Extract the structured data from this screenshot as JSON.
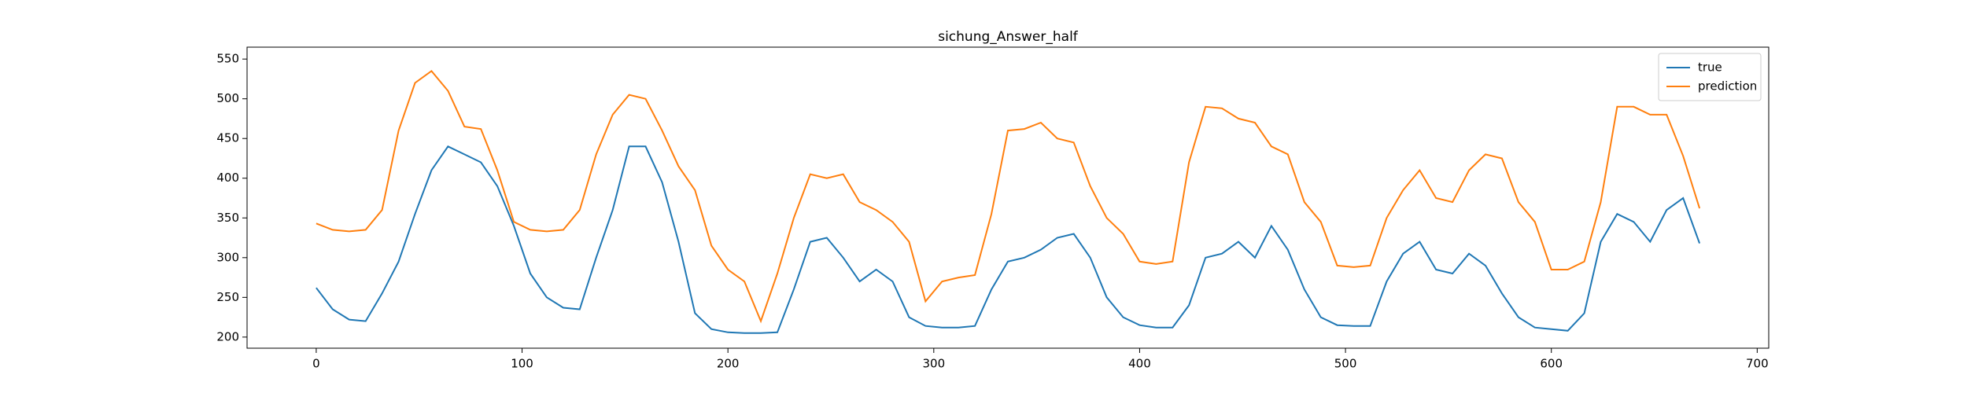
{
  "chart_data": {
    "type": "line",
    "title": "sichung_Answer_half",
    "x": [
      0,
      8,
      16,
      24,
      32,
      40,
      48,
      56,
      64,
      72,
      80,
      88,
      96,
      104,
      112,
      120,
      128,
      136,
      144,
      152,
      160,
      168,
      176,
      184,
      192,
      200,
      208,
      216,
      224,
      232,
      240,
      248,
      256,
      264,
      272,
      280,
      288,
      296,
      304,
      312,
      320,
      328,
      336,
      344,
      352,
      360,
      368,
      376,
      384,
      392,
      400,
      408,
      416,
      424,
      432,
      440,
      448,
      456,
      464,
      472,
      480,
      488,
      496,
      504,
      512,
      520,
      528,
      536,
      544,
      552,
      560,
      568,
      576,
      584,
      592,
      600,
      608,
      616,
      624,
      632,
      640,
      648,
      656,
      664,
      672
    ],
    "series": [
      {
        "name": "true",
        "color": "#1f77b4",
        "values": [
          262,
          235,
          222,
          220,
          255,
          295,
          355,
          410,
          440,
          430,
          420,
          390,
          340,
          280,
          250,
          237,
          235,
          300,
          360,
          440,
          440,
          395,
          320,
          230,
          210,
          206,
          205,
          205,
          206,
          260,
          320,
          325,
          300,
          270,
          285,
          270,
          225,
          214,
          212,
          212,
          214,
          260,
          295,
          300,
          310,
          325,
          330,
          300,
          250,
          225,
          215,
          212,
          212,
          240,
          300,
          305,
          320,
          300,
          340,
          310,
          260,
          225,
          215,
          214,
          214,
          270,
          305,
          320,
          285,
          280,
          305,
          290,
          255,
          225,
          212,
          210,
          208,
          230,
          320,
          355,
          345,
          320,
          360,
          375,
          318
        ]
      },
      {
        "name": "prediction",
        "color": "#ff7f0e",
        "values": [
          343,
          335,
          333,
          335,
          360,
          460,
          520,
          535,
          510,
          465,
          462,
          410,
          345,
          335,
          333,
          335,
          360,
          430,
          480,
          505,
          500,
          460,
          415,
          385,
          315,
          285,
          270,
          220,
          280,
          350,
          405,
          400,
          405,
          370,
          360,
          345,
          320,
          245,
          270,
          275,
          278,
          355,
          460,
          462,
          470,
          450,
          445,
          390,
          350,
          330,
          295,
          292,
          295,
          420,
          490,
          488,
          475,
          470,
          440,
          430,
          370,
          345,
          290,
          288,
          290,
          350,
          385,
          410,
          375,
          370,
          410,
          430,
          425,
          370,
          345,
          285,
          285,
          295,
          370,
          490,
          490,
          480,
          480,
          428,
          362
        ]
      }
    ],
    "xlim": [
      -33.6,
      705.6
    ],
    "xticks": [
      0,
      100,
      200,
      300,
      400,
      500,
      600,
      700
    ],
    "ylim": [
      186,
      565
    ],
    "yticks": [
      200,
      250,
      300,
      350,
      400,
      450,
      500,
      550
    ],
    "legend": "upper right"
  }
}
